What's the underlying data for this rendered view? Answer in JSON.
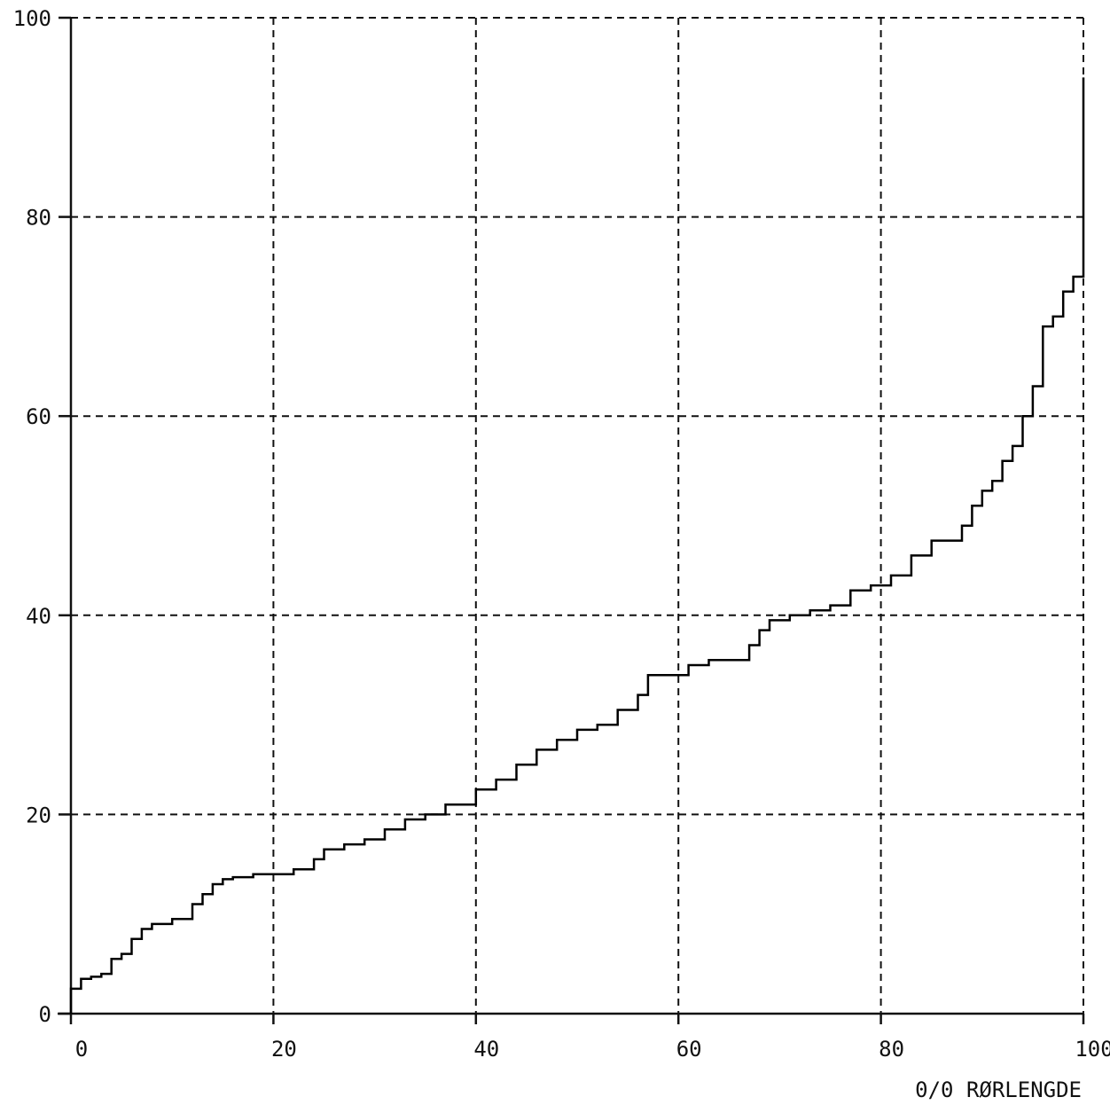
{
  "chart_data": {
    "type": "line",
    "line_style": "step",
    "title": "",
    "xlabel": "0/0 RØRLENGDE",
    "ylabel": "",
    "xlim": [
      0,
      100
    ],
    "ylim": [
      0,
      100
    ],
    "grid": true,
    "x_ticks": [
      "0",
      "20",
      "40",
      "60",
      "80",
      "100"
    ],
    "y_ticks": [
      "0",
      "20",
      "40",
      "60",
      "80",
      "100"
    ],
    "series": [
      {
        "x": [
          0,
          1,
          2,
          3,
          4,
          5,
          6,
          7,
          8,
          10,
          12,
          13,
          14,
          15,
          16,
          18,
          20,
          22,
          24,
          25,
          27,
          29,
          31,
          33,
          35,
          37,
          39,
          40,
          42,
          44,
          46,
          48,
          50,
          52,
          54,
          56,
          57,
          59,
          61,
          63,
          65,
          67,
          68,
          69,
          71,
          73,
          75,
          77,
          79,
          81,
          83,
          85,
          87,
          88,
          89,
          90,
          91,
          92,
          93,
          94,
          95,
          96,
          97,
          98,
          99,
          100
        ],
        "y": [
          2.5,
          3.5,
          3.7,
          4,
          5.5,
          6,
          7.5,
          8.5,
          9,
          9.5,
          11,
          12,
          13,
          13.5,
          13.7,
          14,
          14,
          14.5,
          15.5,
          16.5,
          17,
          17.5,
          18.5,
          19.5,
          20,
          21,
          21,
          22.5,
          23.5,
          25,
          26.5,
          27.5,
          28.5,
          29,
          30.5,
          32,
          34,
          34,
          35,
          35.5,
          35.5,
          37,
          38.5,
          39.5,
          40,
          40.5,
          41,
          42.5,
          43,
          44,
          46,
          47.5,
          47.5,
          49,
          51,
          52.5,
          53.5,
          55.5,
          57,
          60,
          63,
          69,
          70,
          72.5,
          74,
          94
        ]
      }
    ]
  }
}
